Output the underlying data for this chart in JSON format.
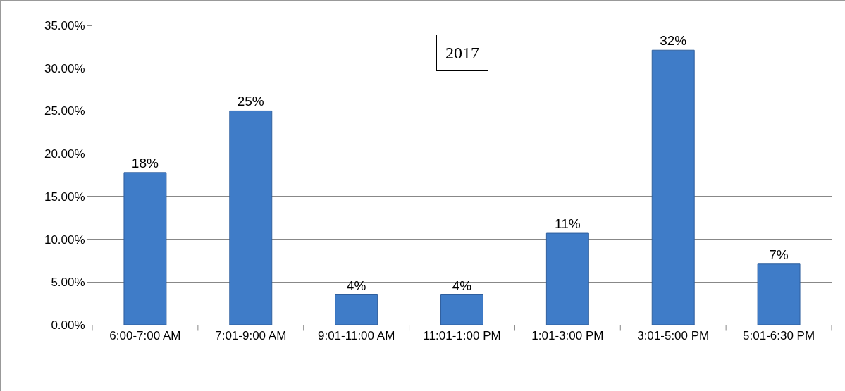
{
  "chart_data": {
    "type": "bar",
    "categories": [
      "6:00-7:00 AM",
      "7:01-9:00 AM",
      "9:01-11:00 AM",
      "11:01-1:00 PM",
      "1:01-3:00 PM",
      "3:01-5:00 PM",
      "5:01-6:30 PM"
    ],
    "values": [
      17.8,
      25.0,
      3.5,
      3.5,
      10.7,
      32.1,
      7.1
    ],
    "value_labels": [
      "18%",
      "25%",
      "4%",
      "4%",
      "11%",
      "32%",
      "7%"
    ],
    "color": "#3f7cc8",
    "ylim": [
      0,
      35
    ],
    "yticks": [
      {
        "value": 0,
        "label": "0.00%"
      },
      {
        "value": 5,
        "label": "5.00%"
      },
      {
        "value": 10,
        "label": "10.00%"
      },
      {
        "value": 15,
        "label": "15.00%"
      },
      {
        "value": 20,
        "label": "20.00%"
      },
      {
        "value": 25,
        "label": "25.00%"
      },
      {
        "value": 30,
        "label": "30.00%"
      },
      {
        "value": 35,
        "label": "35.00%"
      }
    ],
    "grid": "y",
    "annotations": [
      "2017"
    ]
  }
}
